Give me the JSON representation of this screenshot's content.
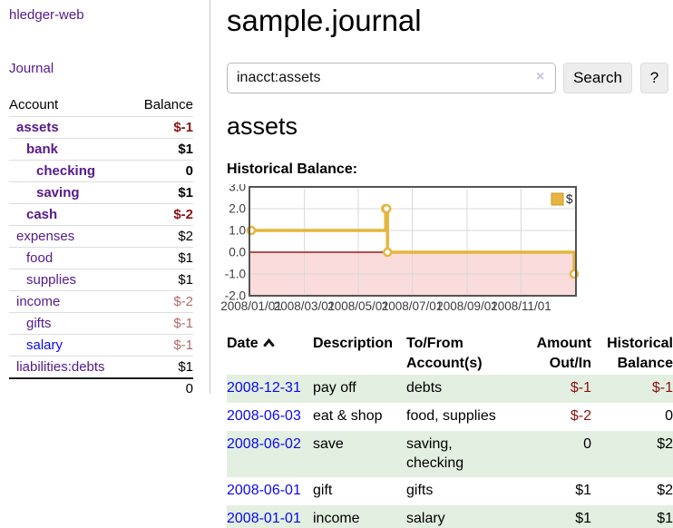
{
  "app_title": "hledger-web",
  "colors": {
    "link_purple": "#551a8b",
    "link_blue": "#0b0bee",
    "negative_strong": "#8b1212",
    "negative_soft": "#b36a6a",
    "row_green": "#e3efe0"
  },
  "sidebar": {
    "journal_link": "Journal",
    "account_header": "Account",
    "balance_header": "Balance",
    "accounts": [
      {
        "name": "assets",
        "level": 1,
        "bold": true,
        "link": "purple",
        "balance": "$-1",
        "neg": "strong"
      },
      {
        "name": "bank",
        "level": 2,
        "bold": true,
        "link": "purple",
        "balance": "$1",
        "neg": "none"
      },
      {
        "name": "checking",
        "level": 3,
        "bold": true,
        "link": "purple",
        "balance": "0",
        "neg": "none"
      },
      {
        "name": "saving",
        "level": 3,
        "bold": true,
        "link": "purple",
        "balance": "$1",
        "neg": "none"
      },
      {
        "name": "cash",
        "level": 2,
        "bold": true,
        "link": "purple",
        "balance": "$-2",
        "neg": "strong"
      },
      {
        "name": "expenses",
        "level": 1,
        "bold": false,
        "link": "purple",
        "balance": "$2",
        "neg": "none"
      },
      {
        "name": "food",
        "level": 2,
        "bold": false,
        "link": "purple",
        "balance": "$1",
        "neg": "none"
      },
      {
        "name": "supplies",
        "level": 2,
        "bold": false,
        "link": "purple",
        "balance": "$1",
        "neg": "none"
      },
      {
        "name": "income",
        "level": 1,
        "bold": false,
        "link": "purple",
        "balance": "$-2",
        "neg": "soft"
      },
      {
        "name": "gifts",
        "level": 2,
        "bold": false,
        "link": "purple",
        "balance": "$-1",
        "neg": "soft"
      },
      {
        "name": "salary",
        "level": 2,
        "bold": false,
        "link": "blue",
        "balance": "$-1",
        "neg": "soft"
      },
      {
        "name": "liabilities:debts",
        "level": 1,
        "bold": false,
        "link": "purple",
        "balance": "$1",
        "neg": "none"
      }
    ],
    "total": "0"
  },
  "main": {
    "title": "sample.journal",
    "search": {
      "value": "inacct:assets",
      "clear_icon": "×",
      "search_button": "Search",
      "help_button": "?"
    },
    "account_title": "assets",
    "chart_heading": "Historical Balance:"
  },
  "chart_data": {
    "type": "line",
    "line_style": "step-after",
    "title": "Historical Balance:",
    "series": [
      {
        "name": "$",
        "color": "#e6b53e",
        "marker_fill": "#ffffff",
        "points": [
          [
            "2008-01-01",
            1
          ],
          [
            "2008-06-01",
            2
          ],
          [
            "2008-06-02",
            2
          ],
          [
            "2008-06-03",
            0
          ],
          [
            "2008-12-31",
            -1
          ]
        ]
      }
    ],
    "x_ticks": [
      "2008/01/01",
      "2008/03/01",
      "2008/05/01",
      "2008/07/01",
      "2008/09/01",
      "2008/11/01"
    ],
    "y_tick_labels": [
      "3.0",
      "2.0",
      "1.0",
      "0.0",
      "-1.0",
      "-2.0"
    ],
    "ylim": [
      -2,
      3
    ],
    "x_range": [
      "2008-01-01",
      "2008-12-31"
    ],
    "grid": true,
    "legend_position": "top-right",
    "legend_label": "$",
    "negative_region_color": "#fbdcdc",
    "zero_line_color": "#9e1818",
    "grid_color": "#d9d9d9",
    "border_color": "#545454",
    "legend_border_color": "#c9992a",
    "tick_label_color": "#3c3c3c"
  },
  "register": {
    "headers": [
      "Date",
      "Description",
      "To/From Account(s)",
      "Amount Out/In",
      "Historical Balance"
    ],
    "rows": [
      {
        "date": "2008-12-31",
        "description": "pay off",
        "accounts": "debts",
        "amount": "$-1",
        "balance": "$-1",
        "amount_negative": true,
        "balance_negative": true
      },
      {
        "date": "2008-06-03",
        "description": "eat & shop",
        "accounts": "food, supplies",
        "amount": "$-2",
        "balance": "0",
        "amount_negative": true,
        "balance_negative": false
      },
      {
        "date": "2008-06-02",
        "description": "save",
        "accounts": "saving, checking",
        "amount": "0",
        "balance": "$2",
        "amount_negative": false,
        "balance_negative": false
      },
      {
        "date": "2008-06-01",
        "description": "gift",
        "accounts": "gifts",
        "amount": "$1",
        "balance": "$2",
        "amount_negative": false,
        "balance_negative": false
      },
      {
        "date": "2008-01-01",
        "description": "income",
        "accounts": "salary",
        "amount": "$1",
        "balance": "$1",
        "amount_negative": false,
        "balance_negative": false
      }
    ]
  }
}
